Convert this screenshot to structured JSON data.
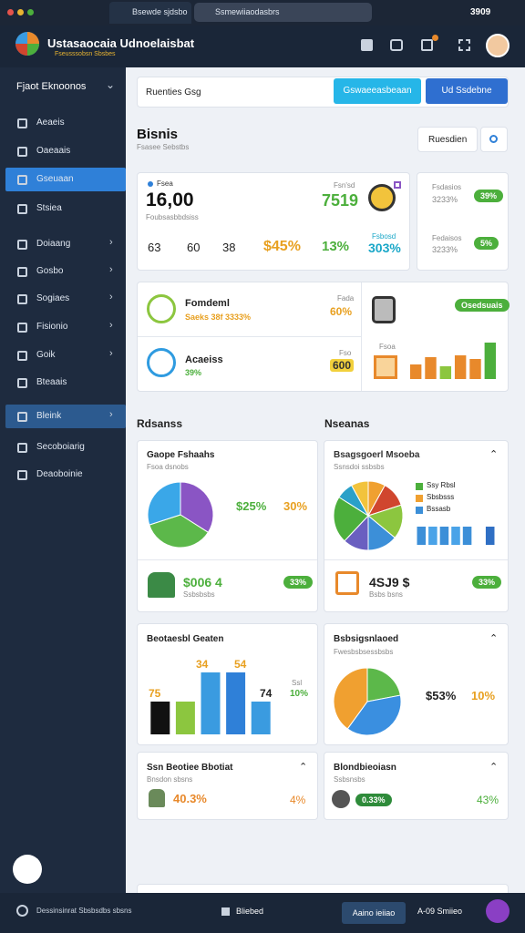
{
  "browser": {
    "tab": "Bsewde sjdsbo",
    "url": "Ssmewiiaodasbrs",
    "badge": "3909"
  },
  "header": {
    "title": "Ustasaocaia Udnoelaisbat",
    "subtitle": "Fseusssobsn Sbsbes"
  },
  "sidebar": {
    "section": "Fjaot Eknoonos",
    "items": [
      "Aeaeis",
      "Oaeaais",
      "Gseuaan",
      "Stsiea",
      "Doiaang",
      "Gosbo",
      "Sogiaes",
      "Fisionio",
      "Goik",
      "Bteaais",
      "Bleink",
      "Secoboiarig",
      "Deaoboinie"
    ]
  },
  "toolbar": {
    "search": "Ruenties Gsg",
    "button_primary": "Gswaeeasbeaan",
    "button_secondary": "Ud Ssdebne"
  },
  "page": {
    "title": "Bisnis",
    "subtitle": "Fsasee Sebstbs",
    "filter": "Ruesdien"
  },
  "kpi": {
    "label": "Fsea",
    "value": "16,00",
    "caption": "Foubsasbbdsiss",
    "right_label": "Fsn'sd",
    "right_value": "7519",
    "stats": [
      "63",
      "60",
      "38",
      "$45%",
      "13%",
      "303%"
    ],
    "stats_caption": "Fsbosd"
  },
  "side_stats": [
    {
      "label": "Fsdasios",
      "value": "3233%",
      "pill": "39%"
    },
    {
      "label": "Fedaisos",
      "value": "3233%",
      "pill": "5%"
    }
  ],
  "overview": {
    "rows": [
      {
        "title": "Fomdeml",
        "caption": "Saeks 38f 3333%",
        "tag": "Fada",
        "value": "60%"
      },
      {
        "title": "Acaeiss",
        "caption": "39%",
        "tag": "Fso",
        "value": "600"
      }
    ],
    "pill": "Osedsuais",
    "tag": "Fsoa",
    "bars": {
      "values": [
        16,
        24,
        14,
        26,
        22,
        40
      ],
      "colors": [
        "#e8892b",
        "#e8892b",
        "#8cc63f",
        "#e8892b",
        "#e8892b",
        "#4caf3c"
      ],
      "ylim": [
        0,
        44
      ]
    }
  },
  "sections": [
    "Rdsanss",
    "Nseanas"
  ],
  "cards": [
    {
      "title": "Gaope Fshaahs",
      "subtitle": "Fsoa dsnobs",
      "pie": [
        {
          "value": 34,
          "color": "#8a55c4"
        },
        {
          "value": 36,
          "color": "#5cb84a"
        },
        {
          "value": 30,
          "color": "#3aa7e8"
        }
      ],
      "stat1": "$25%",
      "stat2": "30%",
      "footer_value": "$006 4",
      "footer_caption": "Ssbsbsbs",
      "pill": "33%"
    },
    {
      "title": "Bsagsgoerl Msoeba",
      "subtitle": "Ssnsdoi ssbsbs",
      "pie": [
        {
          "value": 8,
          "color": "#f0a030"
        },
        {
          "value": 12,
          "color": "#d0462e"
        },
        {
          "value": 16,
          "color": "#8cc63f"
        },
        {
          "value": 14,
          "color": "#3c8fd8"
        },
        {
          "value": 12,
          "color": "#6a5fc0"
        },
        {
          "value": 22,
          "color": "#4caf3c"
        },
        {
          "value": 8,
          "color": "#2aa0c8"
        },
        {
          "value": 8,
          "color": "#f2c33c"
        }
      ],
      "legend": [
        {
          "name": "Ssy Rbsl",
          "color": "#4caf3c"
        },
        {
          "name": "Sbsbsss",
          "color": "#f0a030"
        },
        {
          "name": "Bssasb",
          "color": "#3c8fd8"
        }
      ],
      "bars": {
        "values": [
          20,
          20,
          20,
          20,
          20,
          0,
          20
        ],
        "colors": [
          "#3c8fd8",
          "#4aa3e8",
          "#3c8fd8",
          "#4aa3e8",
          "#3c8fd8",
          "#3c8fd8",
          "#2f6fc4"
        ],
        "ylim": [
          0,
          20
        ]
      },
      "footer_value": "4SJ9 $",
      "footer_caption": "Bsbs bsns",
      "pill": "33%"
    },
    {
      "title": "Beotaesbl Geaten",
      "bars": {
        "values": [
          36,
          36,
          68,
          68,
          36
        ],
        "colors": [
          "#111111",
          "#8cc63f",
          "#3a9be0",
          "#2f80d8",
          "#3a9be0"
        ],
        "ylim": [
          0,
          72
        ]
      },
      "annotations": [
        "75",
        "34",
        "54",
        "74"
      ],
      "stat1": "10%",
      "stat_caption": "Ssl"
    },
    {
      "title": "Bsbsigsnlaoed",
      "subtitle": "Fwesbsbsessbsbs",
      "pie": [
        {
          "value": 22,
          "color": "#5cb84a"
        },
        {
          "value": 38,
          "color": "#3a8fe0"
        },
        {
          "value": 40,
          "color": "#f0a030"
        }
      ],
      "stat1": "$53%",
      "stat2": "10%"
    },
    {
      "title": "Ssn Beotiee Bbotiat",
      "subtitle": "Bnsdon sbsns",
      "value": "40.3%",
      "stat": "4%"
    },
    {
      "title": "Blondbieoiasn",
      "subtitle": "Ssbsnsbs",
      "pill": "0.33%",
      "stat": "43%"
    }
  ],
  "footer": {
    "text": "Dessinsinrat Sbsbsdbs sbsns",
    "center": "Bliebed",
    "button": "Aaino ieiiao",
    "right": "A-09 Smiieo"
  }
}
